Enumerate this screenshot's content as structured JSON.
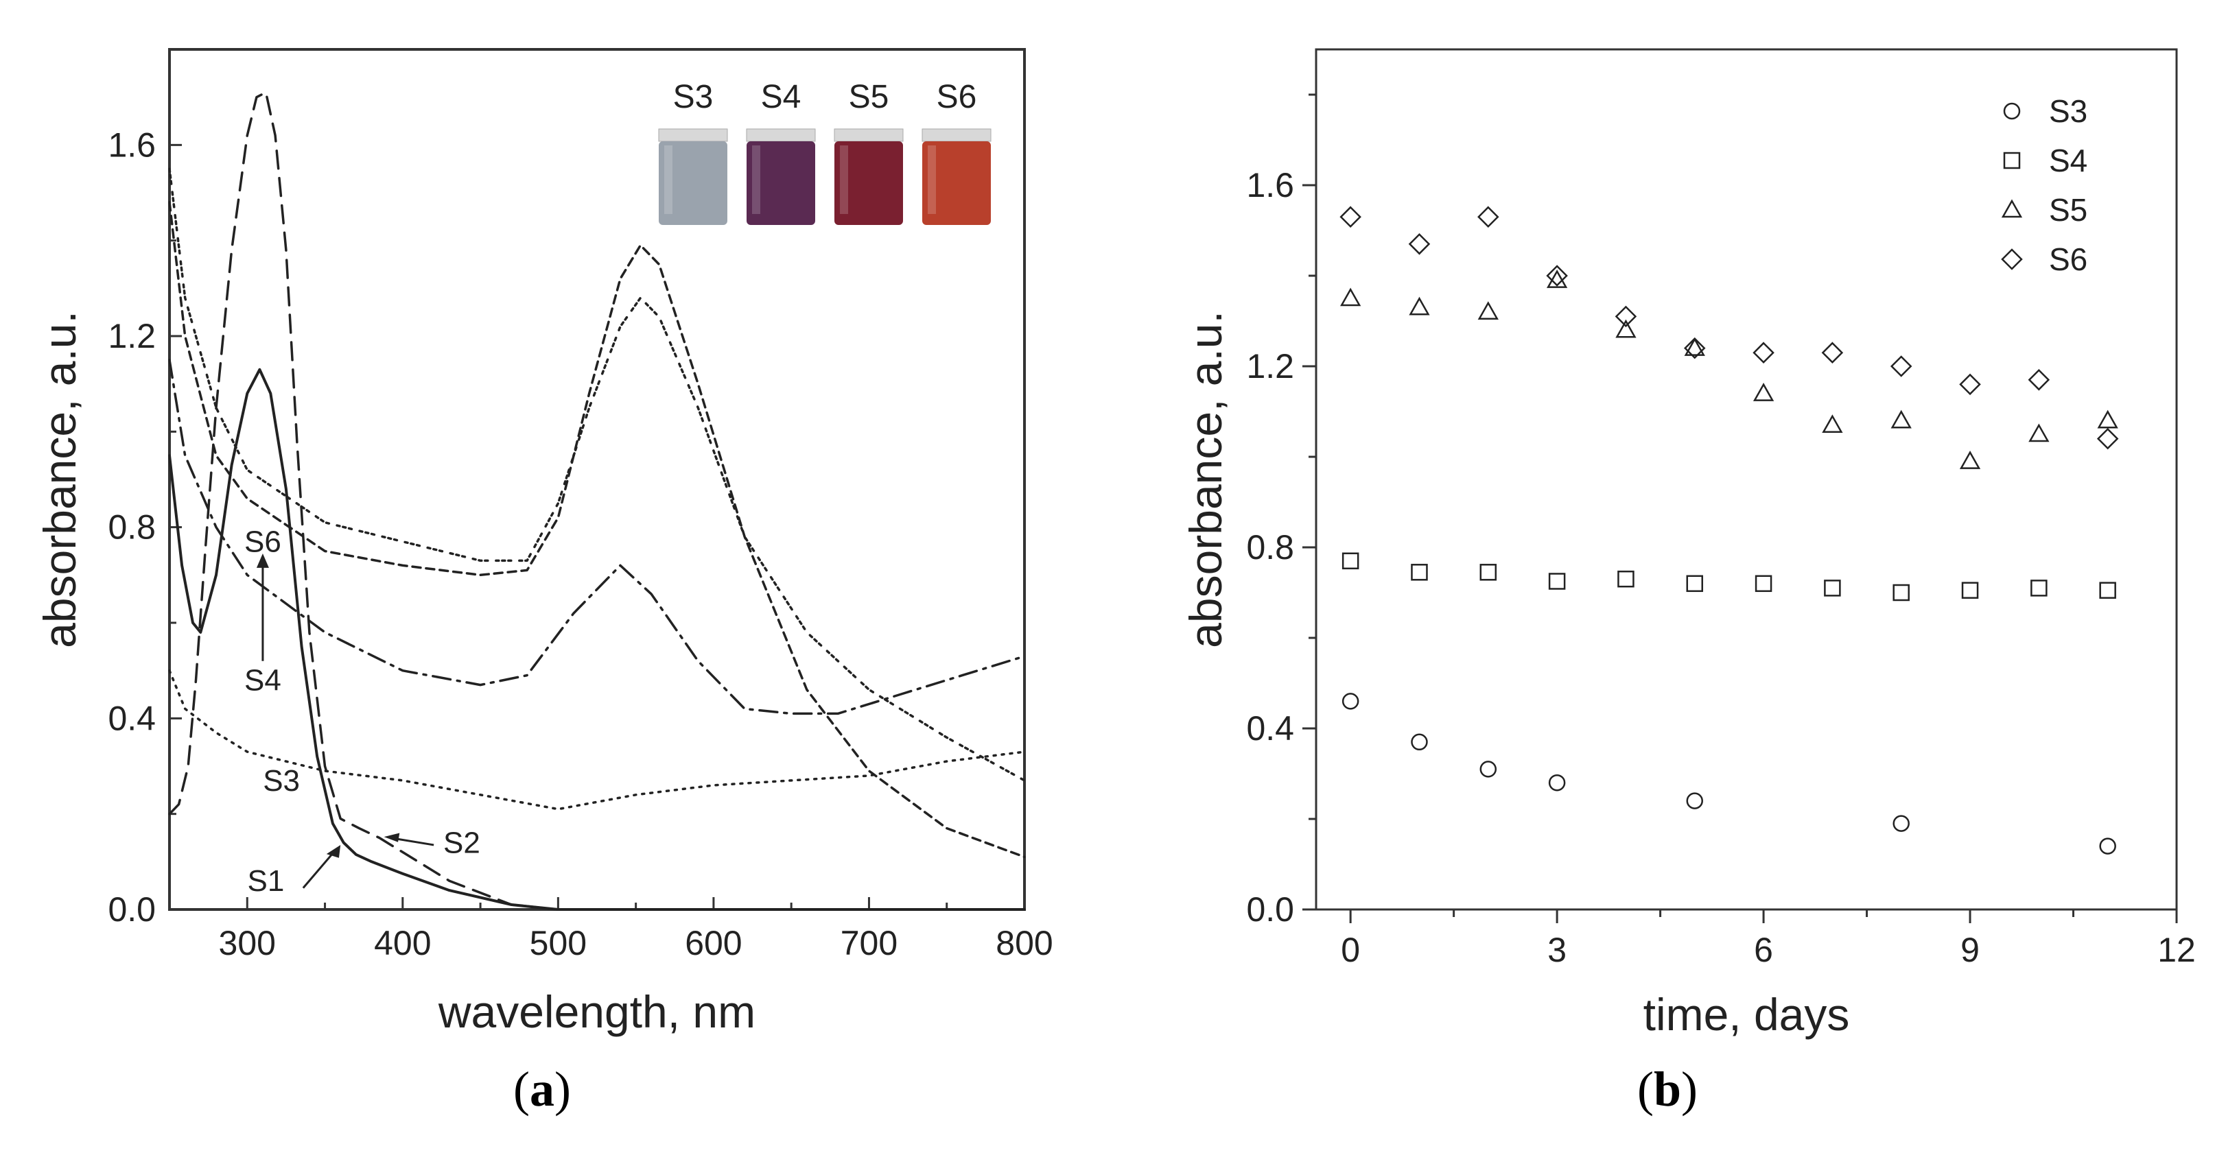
{
  "panels": {
    "a_label": "(a)",
    "b_label": "(b)",
    "bold_a": "a",
    "bold_b": "b"
  },
  "chart_data": [
    {
      "type": "line",
      "panel": "a",
      "title": "",
      "xlabel": "wavelength, nm",
      "ylabel": "absorbance, a.u.",
      "xlim": [
        250,
        800
      ],
      "ylim": [
        0,
        1.8
      ],
      "xticks": [
        300,
        400,
        500,
        600,
        700,
        800
      ],
      "yticks": [
        0.0,
        0.4,
        0.8,
        1.2,
        1.6
      ],
      "xtick_labels": [
        "300",
        "400",
        "500",
        "600",
        "700",
        "800"
      ],
      "ytick_labels": [
        "0.0",
        "0.4",
        "0.8",
        "1.2",
        "1.6"
      ],
      "grid": false,
      "series": [
        {
          "name": "S1",
          "style": "solid",
          "x": [
            250,
            258,
            265,
            270,
            280,
            290,
            300,
            308,
            315,
            325,
            335,
            345,
            355,
            362,
            370,
            380,
            400,
            430,
            470,
            500,
            550,
            650,
            800
          ],
          "y": [
            0.95,
            0.72,
            0.6,
            0.58,
            0.7,
            0.93,
            1.08,
            1.13,
            1.08,
            0.88,
            0.55,
            0.32,
            0.18,
            0.14,
            0.115,
            0.1,
            0.075,
            0.04,
            0.01,
            0.0,
            0.0,
            0.0,
            0.0
          ]
        },
        {
          "name": "S2",
          "style": "dashed",
          "x": [
            250,
            256,
            262,
            267,
            273,
            280,
            290,
            300,
            306,
            312,
            318,
            325,
            332,
            340,
            350,
            360,
            372,
            385,
            400,
            430,
            470,
            500,
            600,
            800
          ],
          "y": [
            0.2,
            0.22,
            0.3,
            0.48,
            0.75,
            1.05,
            1.38,
            1.62,
            1.7,
            1.71,
            1.62,
            1.38,
            0.98,
            0.58,
            0.3,
            0.19,
            0.17,
            0.15,
            0.12,
            0.06,
            0.01,
            0.0,
            0.0,
            0.0
          ]
        },
        {
          "name": "S3",
          "style": "dotted",
          "x": [
            250,
            260,
            280,
            300,
            350,
            400,
            450,
            500,
            550,
            600,
            650,
            700,
            750,
            800
          ],
          "y": [
            0.5,
            0.42,
            0.37,
            0.33,
            0.29,
            0.27,
            0.24,
            0.21,
            0.24,
            0.26,
            0.27,
            0.28,
            0.31,
            0.33
          ]
        },
        {
          "name": "S4",
          "style": "dash-dot",
          "x": [
            250,
            260,
            280,
            300,
            350,
            400,
            450,
            480,
            510,
            540,
            560,
            590,
            620,
            650,
            680,
            720,
            760,
            800
          ],
          "y": [
            1.15,
            0.95,
            0.8,
            0.7,
            0.58,
            0.5,
            0.47,
            0.49,
            0.62,
            0.72,
            0.66,
            0.52,
            0.42,
            0.41,
            0.41,
            0.45,
            0.49,
            0.53
          ]
        },
        {
          "name": "S5",
          "style": "short-dash",
          "x": [
            250,
            260,
            280,
            300,
            350,
            400,
            450,
            480,
            500,
            520,
            540,
            553,
            565,
            590,
            620,
            660,
            700,
            750,
            800
          ],
          "y": [
            1.48,
            1.2,
            0.95,
            0.86,
            0.75,
            0.72,
            0.7,
            0.71,
            0.82,
            1.08,
            1.32,
            1.39,
            1.35,
            1.1,
            0.78,
            0.46,
            0.29,
            0.17,
            0.11
          ]
        },
        {
          "name": "S6",
          "style": "dense-dot",
          "x": [
            250,
            260,
            280,
            300,
            350,
            400,
            450,
            480,
            500,
            520,
            540,
            553,
            565,
            590,
            620,
            660,
            700,
            750,
            800
          ],
          "y": [
            1.55,
            1.28,
            1.05,
            0.92,
            0.81,
            0.77,
            0.73,
            0.73,
            0.85,
            1.05,
            1.22,
            1.28,
            1.24,
            1.05,
            0.78,
            0.58,
            0.46,
            0.36,
            0.27
          ]
        }
      ],
      "annotations": [
        {
          "text": "S6",
          "x": 310,
          "y": 0.77
        },
        {
          "text": "S4",
          "x": 310,
          "y": 0.48
        },
        {
          "text": "S3",
          "x": 322,
          "y": 0.27
        },
        {
          "text": "S2",
          "x": 438,
          "y": 0.14
        },
        {
          "text": "S1",
          "x": 312,
          "y": 0.06
        }
      ],
      "inset_vials": [
        {
          "label": "S3",
          "color": "#9aa3ad"
        },
        {
          "label": "S4",
          "color": "#5a2a52"
        },
        {
          "label": "S5",
          "color": "#7a2030"
        },
        {
          "label": "S6",
          "color": "#b8402c"
        }
      ]
    },
    {
      "type": "scatter",
      "panel": "b",
      "title": "",
      "xlabel": "time, days",
      "ylabel": "absorbance, a.u.",
      "xlim": [
        -0.5,
        12
      ],
      "ylim": [
        0,
        1.9
      ],
      "xticks": [
        0,
        3,
        6,
        9,
        12
      ],
      "yticks": [
        0.0,
        0.4,
        0.8,
        1.2,
        1.6
      ],
      "xtick_labels": [
        "0",
        "3",
        "6",
        "9",
        "12"
      ],
      "ytick_labels": [
        "0.0",
        "0.4",
        "0.8",
        "1.2",
        "1.6"
      ],
      "grid": false,
      "legend": "top-right",
      "series": [
        {
          "name": "S3",
          "marker": "circle",
          "x": [
            0,
            1,
            2,
            3,
            5,
            8,
            11
          ],
          "y": [
            0.46,
            0.37,
            0.31,
            0.28,
            0.24,
            0.19,
            0.14
          ]
        },
        {
          "name": "S4",
          "marker": "square",
          "x": [
            0,
            1,
            2,
            3,
            4,
            5,
            6,
            7,
            8,
            9,
            10,
            11
          ],
          "y": [
            0.77,
            0.745,
            0.745,
            0.725,
            0.73,
            0.72,
            0.72,
            0.71,
            0.7,
            0.705,
            0.71,
            0.705
          ]
        },
        {
          "name": "S5",
          "marker": "triangle",
          "x": [
            0,
            1,
            2,
            3,
            4,
            5,
            6,
            7,
            8,
            9,
            10,
            11
          ],
          "y": [
            1.35,
            1.33,
            1.32,
            1.39,
            1.28,
            1.24,
            1.14,
            1.07,
            1.08,
            0.99,
            1.05,
            1.08
          ]
        },
        {
          "name": "S6",
          "marker": "diamond",
          "x": [
            0,
            1,
            2,
            3,
            4,
            5,
            6,
            7,
            8,
            9,
            10,
            11
          ],
          "y": [
            1.53,
            1.47,
            1.53,
            1.4,
            1.31,
            1.24,
            1.23,
            1.23,
            1.2,
            1.16,
            1.17,
            1.04
          ]
        }
      ]
    }
  ]
}
